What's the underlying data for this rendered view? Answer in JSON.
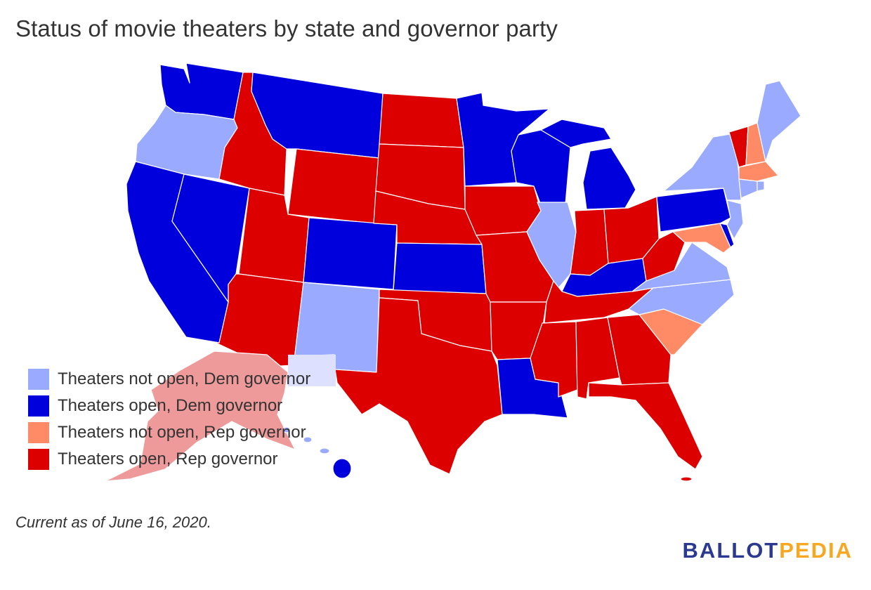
{
  "header": {
    "title": "Status of movie theaters by state and governor party"
  },
  "colors": {
    "not_open_dem": "#99aaff",
    "open_dem": "#0000dd",
    "not_open_rep": "#ff8b66",
    "open_rep": "#dd0000",
    "alaska": "#ef9a9a",
    "new_mexico_label_box": "#dde0ff"
  },
  "legend": {
    "items": [
      {
        "label": "Theaters not open, Dem governor",
        "color": "#99aaff"
      },
      {
        "label": "Theaters open, Dem governor",
        "color": "#0000dd"
      },
      {
        "label": "Theaters not open, Rep governor",
        "color": "#ff8b66"
      },
      {
        "label": "Theaters open, Rep governor",
        "color": "#dd0000"
      }
    ]
  },
  "states": {
    "not_open_dem": [
      "Oregon",
      "New Mexico",
      "Illinois",
      "Virginia",
      "North Carolina",
      "New York",
      "Maine",
      "New Jersey",
      "Connecticut",
      "Rhode Island",
      "Hawaii"
    ],
    "open_dem": [
      "Washington",
      "Montana",
      "California",
      "Nevada",
      "Colorado",
      "Kansas",
      "Minnesota",
      "Wisconsin",
      "Michigan",
      "Kentucky",
      "Pennsylvania",
      "Delaware",
      "Louisiana"
    ],
    "not_open_rep": [
      "New Hampshire",
      "Massachusetts",
      "Maryland",
      "South Carolina"
    ],
    "open_rep": [
      "Idaho",
      "Wyoming",
      "Utah",
      "Arizona",
      "North Dakota",
      "South Dakota",
      "Nebraska",
      "Oklahoma",
      "Texas",
      "Iowa",
      "Missouri",
      "Arkansas",
      "Mississippi",
      "Alabama",
      "Georgia",
      "Florida",
      "Tennessee",
      "Indiana",
      "Ohio",
      "West Virginia",
      "Vermont",
      "Alaska"
    ]
  },
  "footer": {
    "note": "Current as of June 16, 2020."
  },
  "logo": {
    "part1": "BALLOT",
    "part2": "PEDIA"
  }
}
